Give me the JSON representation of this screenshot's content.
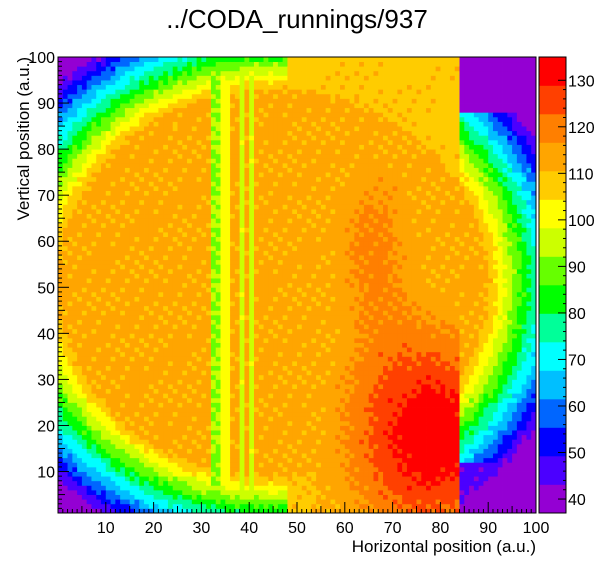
{
  "chart_data": {
    "type": "heatmap",
    "title": "../CODA_runnings/937",
    "xlabel": "Horizontal position (a.u.)",
    "ylabel": "Vertical position (a.u.)",
    "xlim": [
      0,
      100
    ],
    "ylim": [
      1,
      100
    ],
    "x_ticks": [
      "10",
      "20",
      "30",
      "40",
      "50",
      "60",
      "70",
      "80",
      "90",
      "100"
    ],
    "y_ticks": [
      "10",
      "20",
      "30",
      "40",
      "50",
      "60",
      "70",
      "80",
      "90",
      "100"
    ],
    "colorbar": {
      "range": [
        37,
        135
      ],
      "ticks": [
        "40",
        "50",
        "60",
        "70",
        "80",
        "90",
        "100",
        "110",
        "120",
        "130"
      ],
      "palette": [
        "#9400d3",
        "#4b00ff",
        "#0000ff",
        "#0066ff",
        "#00bfff",
        "#00ffff",
        "#00ff99",
        "#00ff00",
        "#66ff00",
        "#ccff00",
        "#ffff00",
        "#ffcc00",
        "#ffa500",
        "#ff7f00",
        "#ff4000",
        "#ff0000"
      ]
    },
    "grid": false,
    "legend": "colorbar-right",
    "features": {
      "ring": {
        "center_x": 45,
        "center_y": 51,
        "radius_x": 62,
        "radius_y": 58
      },
      "vertical_stripes": [
        {
          "x_from": 32,
          "x_to": 33.5,
          "value": 92
        },
        {
          "x_from": 33.5,
          "x_to": 35.5,
          "value": 101
        },
        {
          "x_from": 37.5,
          "x_to": 38.5,
          "value": 96
        },
        {
          "x_from": 39.5,
          "x_to": 40.5,
          "value": 96
        }
      ],
      "hot_region": {
        "peak_x": 78,
        "peak_y": 18,
        "peak_value": 131
      },
      "cutoff_x": 84,
      "cutoff_value": 40
    }
  }
}
